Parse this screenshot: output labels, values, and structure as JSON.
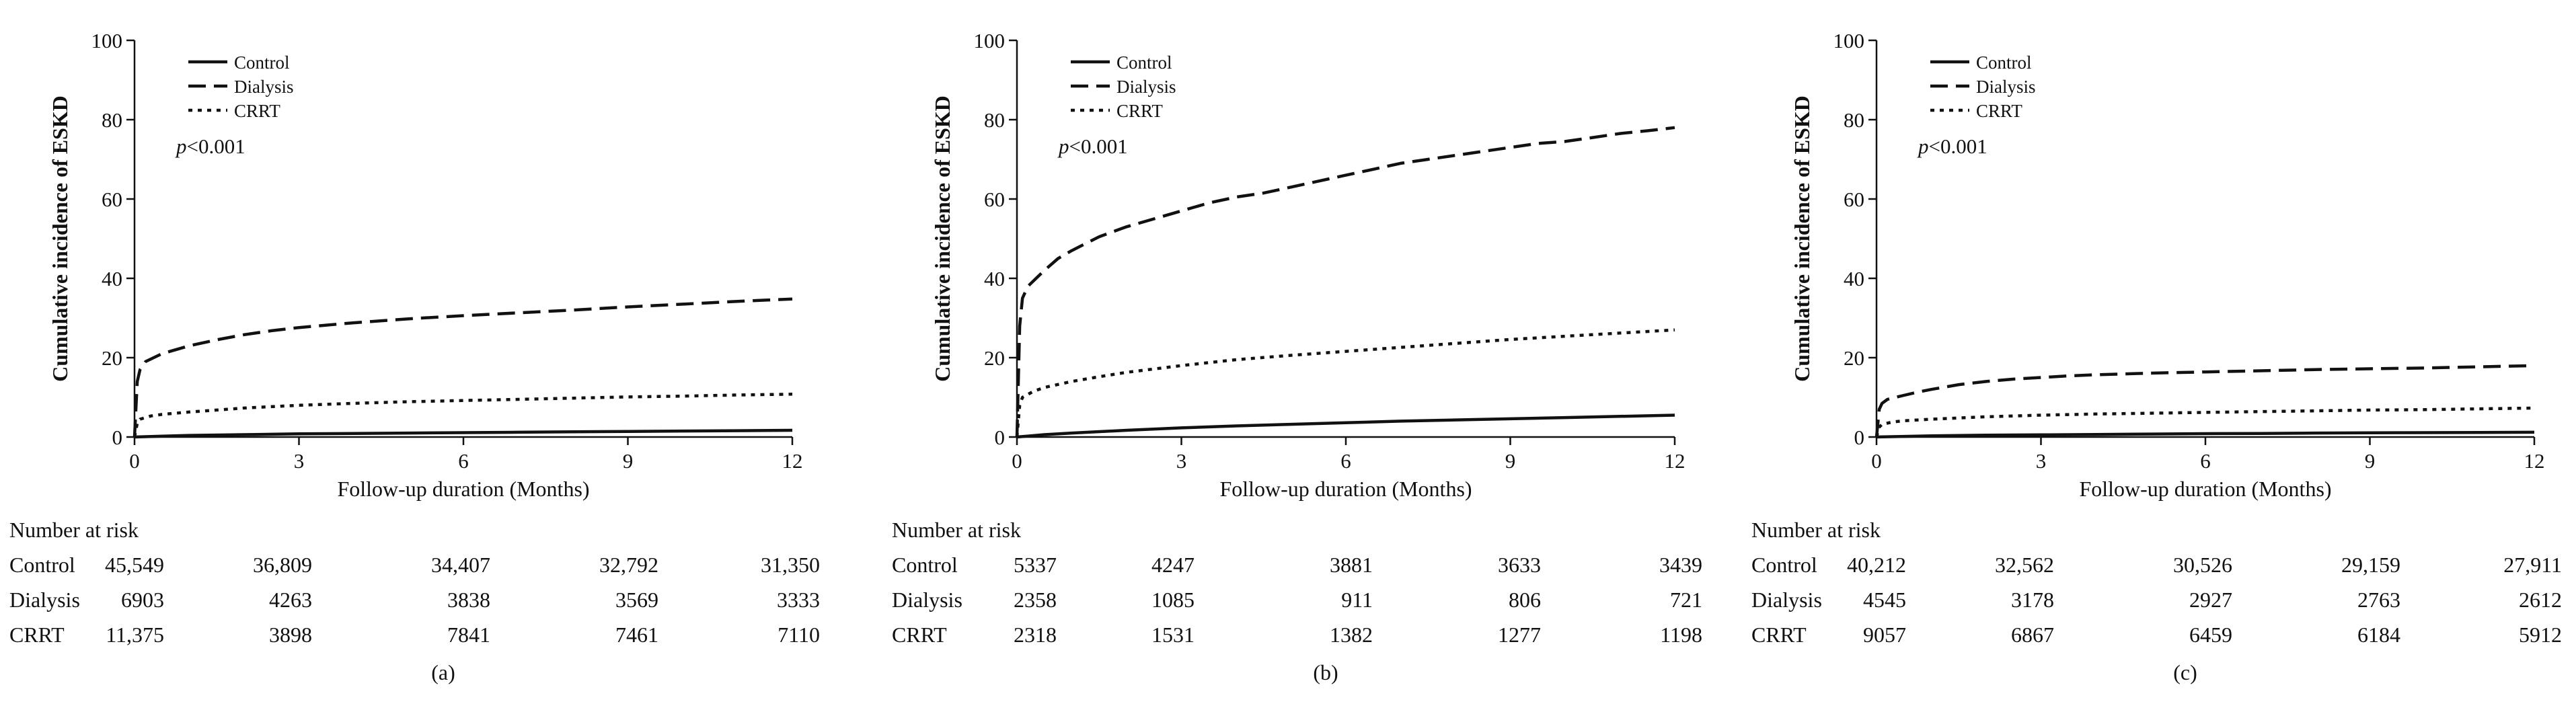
{
  "series_styles": {
    "Control": {
      "color": "#111111",
      "dash": ""
    },
    "Dialysis": {
      "color": "#111111",
      "dash": "26,12"
    },
    "CRRT": {
      "color": "#111111",
      "dash": "6,8"
    }
  },
  "risk_table_title": "Number at risk",
  "chart_data": [
    {
      "type": "line",
      "panel_label": "(a)",
      "title": "",
      "xlabel": "Follow-up duration (Months)",
      "ylabel": "Cumulative incidence of ESKD",
      "xlim": [
        0,
        12
      ],
      "ylim": [
        0,
        100
      ],
      "xticks": [
        "0",
        "3",
        "6",
        "9",
        "12"
      ],
      "yticks": [
        "0",
        "20",
        "40",
        "60",
        "80",
        "100"
      ],
      "annotation": {
        "p_letter": "p",
        "p_value": "<0.001"
      },
      "legend": [
        "Control",
        "Dialysis",
        "CRRT"
      ],
      "series": [
        {
          "name": "Control",
          "x": [
            0,
            0.5,
            1,
            2,
            3,
            4,
            5,
            6,
            7,
            8,
            9,
            10,
            11,
            12
          ],
          "y": [
            0,
            0.2,
            0.4,
            0.6,
            0.8,
            0.9,
            1.0,
            1.1,
            1.2,
            1.3,
            1.4,
            1.5,
            1.6,
            1.7
          ]
        },
        {
          "name": "Dialysis",
          "x": [
            0,
            0.05,
            0.1,
            0.2,
            0.35,
            0.5,
            0.75,
            1,
            1.5,
            2,
            2.5,
            3,
            3.5,
            4,
            5,
            6,
            7,
            8,
            9,
            10,
            11,
            12
          ],
          "y": [
            0,
            14,
            17,
            19,
            20,
            21,
            22,
            23,
            24.5,
            25.8,
            26.8,
            27.6,
            28.2,
            28.8,
            29.8,
            30.6,
            31.3,
            32,
            32.8,
            33.5,
            34.2,
            34.8
          ]
        },
        {
          "name": "CRRT",
          "x": [
            0,
            0.05,
            0.1,
            0.3,
            0.5,
            1,
            1.5,
            2,
            3,
            4,
            5,
            6,
            7,
            8,
            9,
            10,
            11,
            12
          ],
          "y": [
            0,
            3.5,
            4.5,
            5.3,
            5.7,
            6.3,
            6.8,
            7.3,
            8,
            8.5,
            8.9,
            9.2,
            9.5,
            9.8,
            10.1,
            10.3,
            10.6,
            10.8
          ]
        }
      ],
      "risk_table": {
        "times": [
          "0",
          "3",
          "6",
          "9",
          "12"
        ],
        "rows": [
          {
            "group": "Control",
            "values": [
              "45,549",
              "36,809",
              "34,407",
              "32,792",
              "31,350"
            ]
          },
          {
            "group": "Dialysis",
            "values": [
              "6903",
              "4263",
              "3838",
              "3569",
              "3333"
            ]
          },
          {
            "group": "CRRT",
            "values": [
              "11,375",
              "3898",
              "7841",
              "7461",
              "7110"
            ]
          }
        ]
      }
    },
    {
      "type": "line",
      "panel_label": "(b)",
      "title": "",
      "xlabel": "Follow-up duration (Months)",
      "ylabel": "Cumulative incidence of ESKD",
      "xlim": [
        0,
        12
      ],
      "ylim": [
        0,
        100
      ],
      "xticks": [
        "0",
        "3",
        "6",
        "9",
        "12"
      ],
      "yticks": [
        "0",
        "20",
        "40",
        "60",
        "80",
        "100"
      ],
      "annotation": {
        "p_letter": "p",
        "p_value": "<0.001"
      },
      "legend": [
        "Control",
        "Dialysis",
        "CRRT"
      ],
      "series": [
        {
          "name": "Control",
          "x": [
            0,
            0.5,
            1,
            2,
            3,
            4,
            5,
            6,
            7,
            8,
            9,
            10,
            11,
            12
          ],
          "y": [
            0,
            0.6,
            1.0,
            1.7,
            2.3,
            2.8,
            3.2,
            3.6,
            4.0,
            4.3,
            4.6,
            4.9,
            5.2,
            5.5
          ]
        },
        {
          "name": "Dialysis",
          "x": [
            0,
            0.05,
            0.1,
            0.2,
            0.35,
            0.5,
            0.75,
            1,
            1.5,
            2,
            2.5,
            3,
            3.5,
            4,
            4.5,
            5,
            5.5,
            6,
            6.5,
            7,
            7.5,
            8,
            8.5,
            9,
            9.5,
            10,
            10.5,
            11,
            11.5,
            12
          ],
          "y": [
            0,
            28,
            35,
            38,
            40,
            42,
            45,
            47,
            50.5,
            53,
            55,
            57,
            59,
            60.5,
            61.5,
            63,
            64.5,
            66,
            67.5,
            69,
            70,
            71,
            72,
            73,
            74,
            74.5,
            75.5,
            76.5,
            77.2,
            78
          ]
        },
        {
          "name": "CRRT",
          "x": [
            0,
            0.05,
            0.1,
            0.3,
            0.5,
            1,
            1.5,
            2,
            3,
            4,
            5,
            6,
            7,
            8,
            9,
            10,
            11,
            12
          ],
          "y": [
            0,
            8,
            10,
            11.5,
            12.5,
            14,
            15.2,
            16.3,
            18,
            19.5,
            20.6,
            21.6,
            22.6,
            23.6,
            24.6,
            25.4,
            26.2,
            27
          ]
        }
      ],
      "risk_table": {
        "times": [
          "0",
          "3",
          "6",
          "9",
          "12"
        ],
        "rows": [
          {
            "group": "Control",
            "values": [
              "5337",
              "4247",
              "3881",
              "3633",
              "3439"
            ]
          },
          {
            "group": "Dialysis",
            "values": [
              "2358",
              "1085",
              "911",
              "806",
              "721"
            ]
          },
          {
            "group": "CRRT",
            "values": [
              "2318",
              "1531",
              "1382",
              "1277",
              "1198"
            ]
          }
        ]
      }
    },
    {
      "type": "line",
      "panel_label": "(c)",
      "title": "",
      "xlabel": "Follow-up duration (Months)",
      "ylabel": "Cumulative incidence of ESKD",
      "xlim": [
        0,
        12
      ],
      "ylim": [
        0,
        100
      ],
      "xticks": [
        "0",
        "3",
        "6",
        "9",
        "12"
      ],
      "yticks": [
        "0",
        "20",
        "40",
        "60",
        "80",
        "100"
      ],
      "annotation": {
        "p_letter": "p",
        "p_value": "<0.001"
      },
      "legend": [
        "Control",
        "Dialysis",
        "CRRT"
      ],
      "series": [
        {
          "name": "Control",
          "x": [
            0,
            0.5,
            1,
            2,
            3,
            4,
            5,
            6,
            7,
            8,
            9,
            10,
            11,
            12
          ],
          "y": [
            0,
            0.15,
            0.3,
            0.45,
            0.55,
            0.65,
            0.75,
            0.85,
            0.9,
            1.0,
            1.05,
            1.1,
            1.15,
            1.2
          ]
        },
        {
          "name": "Dialysis",
          "x": [
            0,
            0.05,
            0.1,
            0.2,
            0.35,
            0.5,
            0.75,
            1,
            1.5,
            2,
            2.5,
            3,
            3.5,
            4,
            5,
            6,
            7,
            8,
            9,
            10,
            11,
            12
          ],
          "y": [
            0,
            7,
            8.5,
            9.5,
            10,
            10.5,
            11.3,
            12,
            13.2,
            14,
            14.6,
            15,
            15.4,
            15.7,
            16.1,
            16.4,
            16.7,
            17,
            17.2,
            17.4,
            17.7,
            18
          ]
        },
        {
          "name": "CRRT",
          "x": [
            0,
            0.05,
            0.1,
            0.3,
            0.5,
            1,
            1.5,
            2,
            3,
            4,
            5,
            6,
            7,
            8,
            9,
            10,
            11,
            12
          ],
          "y": [
            0,
            2.5,
            3.2,
            3.8,
            4.1,
            4.5,
            4.8,
            5.1,
            5.5,
            5.8,
            6.0,
            6.2,
            6.4,
            6.6,
            6.8,
            6.9,
            7.1,
            7.3
          ]
        }
      ],
      "risk_table": {
        "times": [
          "0",
          "3",
          "6",
          "9",
          "12"
        ],
        "rows": [
          {
            "group": "Control",
            "values": [
              "40,212",
              "32,562",
              "30,526",
              "29,159",
              "27,911"
            ]
          },
          {
            "group": "Dialysis",
            "values": [
              "4545",
              "3178",
              "2927",
              "2763",
              "2612"
            ]
          },
          {
            "group": "CRRT",
            "values": [
              "9057",
              "6867",
              "6459",
              "6184",
              "5912"
            ]
          }
        ]
      }
    }
  ]
}
